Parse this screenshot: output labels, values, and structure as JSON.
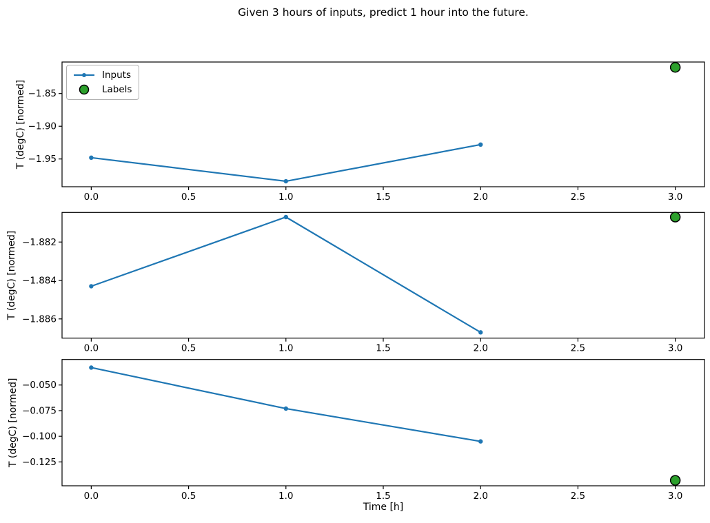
{
  "figure": {
    "title": "Given 3 hours of inputs, predict 1 hour into the future.",
    "background": "#ffffff"
  },
  "colors": {
    "inputs_line": "#1f77b4",
    "labels_fill": "#2ca02c",
    "labels_edge": "#000000",
    "axis": "#000000",
    "text": "#000000",
    "legend_border": "#b0b0b0"
  },
  "legend": {
    "items": [
      {
        "label": "Inputs",
        "type": "line-marker",
        "color": "#1f77b4"
      },
      {
        "label": "Labels",
        "type": "scatter",
        "color": "#2ca02c",
        "edge": "#000000"
      }
    ],
    "position": "upper-left-subplot-1"
  },
  "chart_data": [
    {
      "type": "line",
      "title": "",
      "xlabel": "",
      "ylabel": "T (degC) [normed]",
      "x": [
        0.0,
        1.0,
        2.0
      ],
      "series": [
        {
          "name": "Inputs",
          "values": [
            -1.948,
            -1.984,
            -1.928
          ]
        }
      ],
      "label_point": {
        "name": "Labels",
        "x": 3.0,
        "y": -1.81
      },
      "xlim": [
        -0.15,
        3.15
      ],
      "ylim": [
        -1.9924,
        -1.8019
      ],
      "xticks": [
        0.0,
        0.5,
        1.0,
        1.5,
        2.0,
        2.5,
        3.0
      ],
      "xtick_labels": [
        "0.0",
        "0.5",
        "1.0",
        "1.5",
        "2.0",
        "2.5",
        "3.0"
      ],
      "yticks": [
        -1.85,
        -1.9,
        -1.95
      ],
      "ytick_labels": [
        "−1.85",
        "−1.90",
        "−1.95"
      ],
      "grid": false,
      "legend_visible": true
    },
    {
      "type": "line",
      "title": "",
      "xlabel": "",
      "ylabel": "T (degC) [normed]",
      "x": [
        0.0,
        1.0,
        2.0
      ],
      "series": [
        {
          "name": "Inputs",
          "values": [
            -1.8843,
            -1.8807,
            -1.8867
          ]
        }
      ],
      "label_point": {
        "name": "Labels",
        "x": 3.0,
        "y": -1.8807
      },
      "xlim": [
        -0.15,
        3.15
      ],
      "ylim": [
        -1.887,
        -1.88046
      ],
      "xticks": [
        0.0,
        0.5,
        1.0,
        1.5,
        2.0,
        2.5,
        3.0
      ],
      "xtick_labels": [
        "0.0",
        "0.5",
        "1.0",
        "1.5",
        "2.0",
        "2.5",
        "3.0"
      ],
      "yticks": [
        -1.882,
        -1.884,
        -1.886
      ],
      "ytick_labels": [
        "−1.882",
        "−1.884",
        "−1.886"
      ],
      "grid": false,
      "legend_visible": false
    },
    {
      "type": "line",
      "title": "",
      "xlabel": "Time [h]",
      "ylabel": "T (degC) [normed]",
      "x": [
        0.0,
        1.0,
        2.0
      ],
      "series": [
        {
          "name": "Inputs",
          "values": [
            -0.033,
            -0.073,
            -0.105
          ]
        }
      ],
      "label_point": {
        "name": "Labels",
        "x": 3.0,
        "y": -0.143
      },
      "xlim": [
        -0.15,
        3.15
      ],
      "ylim": [
        -0.1483,
        -0.0251
      ],
      "xticks": [
        0.0,
        0.5,
        1.0,
        1.5,
        2.0,
        2.5,
        3.0
      ],
      "xtick_labels": [
        "0.0",
        "0.5",
        "1.0",
        "1.5",
        "2.0",
        "2.5",
        "3.0"
      ],
      "yticks": [
        -0.05,
        -0.075,
        -0.1,
        -0.125
      ],
      "ytick_labels": [
        "−0.050",
        "−0.075",
        "−0.100",
        "−0.125"
      ],
      "grid": false,
      "legend_visible": false
    }
  ]
}
